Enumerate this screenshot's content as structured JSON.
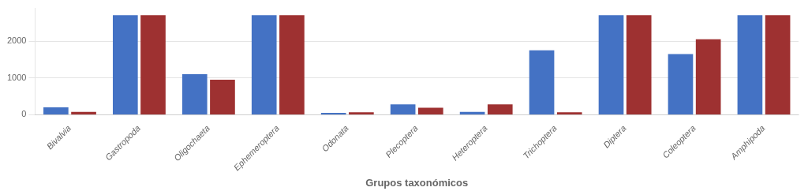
{
  "chart_data": {
    "type": "bar",
    "xlabel": "Grupos taxonómicos",
    "categories": [
      "Bivalvia",
      "Gastropoda",
      "Oligochaeta",
      "Ephemeroptera",
      "Odonata",
      "Plecoptera",
      "Heteroptera",
      "Trichoptera",
      "Diptera",
      "Coleoptera",
      "Amphipoda"
    ],
    "series": [
      {
        "color": "#4472C4",
        "values": [
          200,
          2700,
          1100,
          2700,
          50,
          280,
          80,
          1750,
          2700,
          1650,
          2700
        ]
      },
      {
        "color": "#9E3131",
        "values": [
          80,
          2700,
          950,
          2700,
          70,
          190,
          280,
          70,
          2700,
          2050,
          2700
        ]
      }
    ],
    "ylim": [
      0,
      2900
    ],
    "yticks": [
      0,
      1000,
      2000
    ],
    "grid": true
  }
}
